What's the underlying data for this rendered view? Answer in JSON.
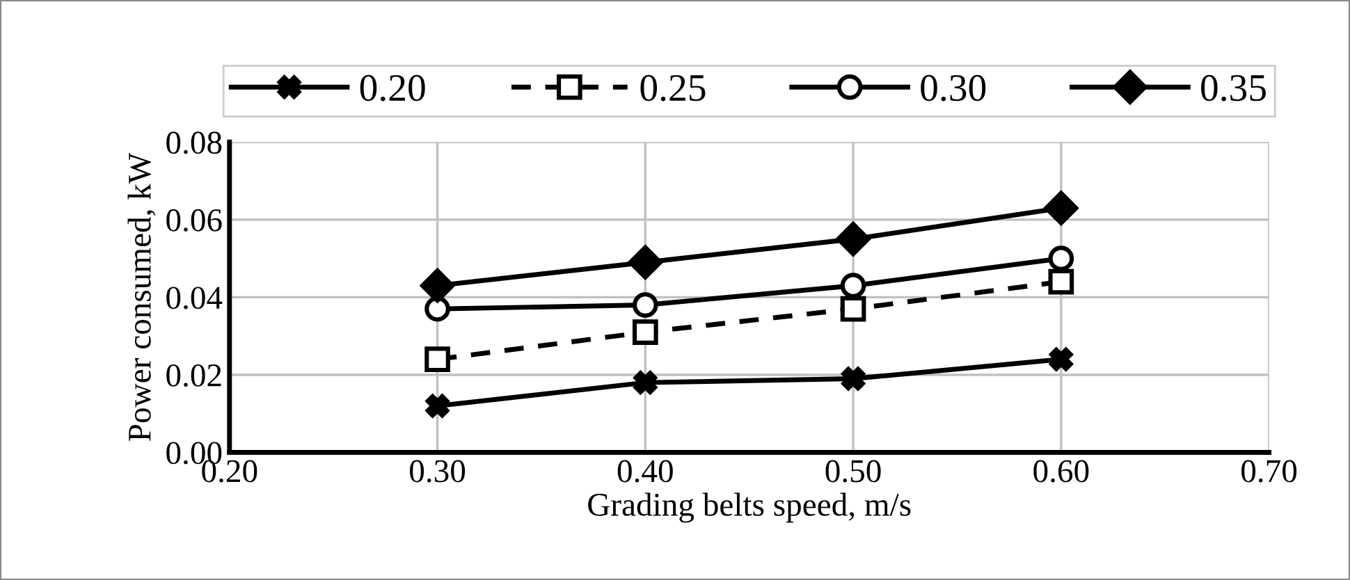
{
  "chart_data": {
    "type": "line",
    "xlabel": "Grading belts speed, m/s",
    "ylabel": "Power consumed, kW",
    "x": [
      0.3,
      0.4,
      0.5,
      0.6
    ],
    "series": [
      {
        "name": "0.20",
        "color": "#000000",
        "marker": "cross",
        "line_style": "solid",
        "values": [
          0.012,
          0.018,
          0.019,
          0.024
        ]
      },
      {
        "name": "0.25",
        "color": "#000000",
        "marker": "square",
        "line_style": "dashed",
        "values": [
          0.024,
          0.031,
          0.037,
          0.044
        ]
      },
      {
        "name": "0.30",
        "color": "#000000",
        "marker": "circle",
        "line_style": "solid",
        "values": [
          0.037,
          0.038,
          0.043,
          0.05
        ]
      },
      {
        "name": "0.35",
        "color": "#000000",
        "marker": "diamond",
        "line_style": "solid",
        "values": [
          0.043,
          0.049,
          0.055,
          0.063
        ]
      }
    ],
    "xlim": [
      0.2,
      0.7
    ],
    "xticks": [
      {
        "value": 0.2,
        "label": "0.20"
      },
      {
        "value": 0.3,
        "label": "0.30"
      },
      {
        "value": 0.4,
        "label": "0.40"
      },
      {
        "value": 0.5,
        "label": "0.50"
      },
      {
        "value": 0.6,
        "label": "0.60"
      },
      {
        "value": 0.7,
        "label": "0.70"
      }
    ],
    "ylim": [
      0,
      0.08
    ],
    "yticks": [
      {
        "value": 0,
        "label": "0.00"
      },
      {
        "value": 0.02,
        "label": "0.02"
      },
      {
        "value": 0.04,
        "label": "0.04"
      },
      {
        "value": 0.06,
        "label": "0.06"
      },
      {
        "value": 0.08,
        "label": "0.08"
      }
    ],
    "grid": true,
    "legend": "top"
  }
}
